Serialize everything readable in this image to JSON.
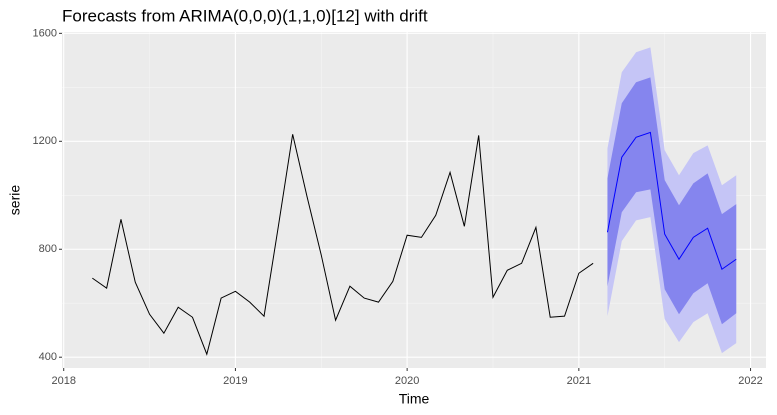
{
  "chart_data": {
    "type": "forecast",
    "title": "Forecasts from ARIMA(0,0,0)(1,1,0)[12] with drift",
    "xlabel": "Time",
    "ylabel": "serie",
    "x": [
      2018.1667,
      2018.25,
      2018.3333,
      2018.4167,
      2018.5,
      2018.5833,
      2018.6667,
      2018.75,
      2018.8333,
      2018.9167,
      2019,
      2019.0833,
      2019.1667,
      2019.25,
      2019.3333,
      2019.4167,
      2019.5,
      2019.5833,
      2019.6667,
      2019.75,
      2019.8333,
      2019.9167,
      2020,
      2020.0833,
      2020.1667,
      2020.25,
      2020.3333,
      2020.4167,
      2020.5,
      2020.5833,
      2020.6667,
      2020.75,
      2020.8333,
      2020.9167,
      2021,
      2021.0833
    ],
    "values": [
      693,
      656,
      911,
      678,
      559,
      489,
      585,
      548,
      411,
      619,
      644,
      604,
      552,
      885,
      1226,
      996,
      778,
      537,
      663,
      619,
      604,
      681,
      852,
      844,
      926,
      1085,
      885,
      1222,
      622,
      722,
      748,
      881,
      548,
      552,
      711,
      748
    ],
    "color": "#000000",
    "forecast": {
      "x": [
        2021.1667,
        2021.25,
        2021.3333,
        2021.4167,
        2021.5,
        2021.5833,
        2021.6667,
        2021.75,
        2021.8333,
        2021.9167
      ],
      "mean": [
        863,
        1141,
        1215,
        1233,
        856,
        763,
        844,
        878,
        726,
        763
      ],
      "lo80": [
        663,
        937,
        1011,
        1022,
        652,
        559,
        637,
        674,
        522,
        563
      ],
      "hi80": [
        1063,
        1341,
        1419,
        1437,
        1056,
        963,
        1044,
        1081,
        930,
        967
      ],
      "lo95": [
        552,
        830,
        907,
        919,
        541,
        456,
        530,
        563,
        415,
        452
      ],
      "hi95": [
        1174,
        1456,
        1530,
        1548,
        1167,
        1074,
        1156,
        1185,
        1037,
        1074
      ],
      "color": "#0000ff",
      "color80": "#8585ee",
      "color95": "#c5c5f6"
    },
    "xlim": [
      2017.99,
      2022.09
    ],
    "ylim": [
      360,
      1605
    ],
    "xticks": [
      2018,
      2019,
      2020,
      2021,
      2022
    ],
    "yticks": [
      400,
      800,
      1200,
      1600
    ],
    "grid": true
  }
}
